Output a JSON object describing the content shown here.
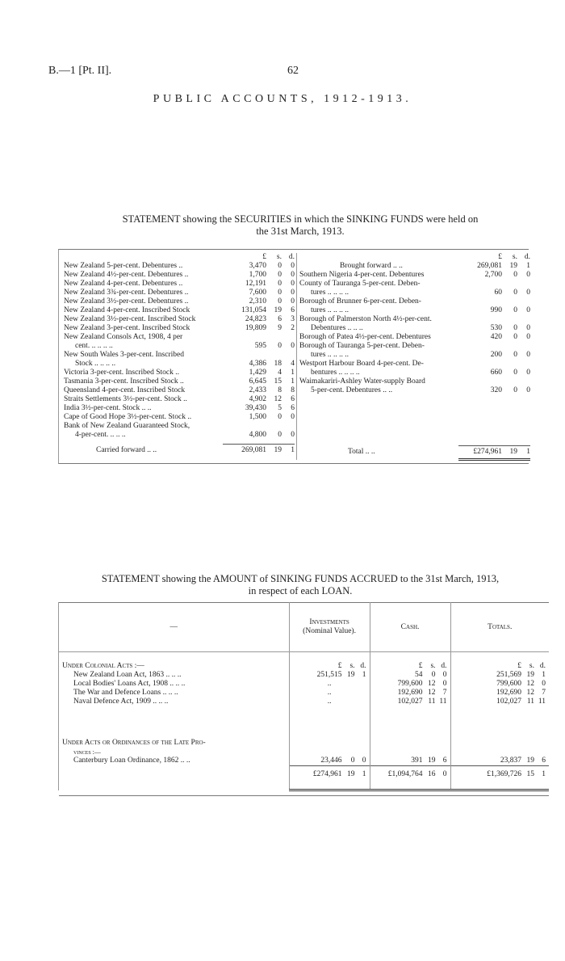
{
  "header": {
    "reference": "B.—1 [Pt. II].",
    "page_number": "62",
    "title": "PUBLIC ACCOUNTS, 1912-1913."
  },
  "statement1": {
    "heading_line1": "STATEMENT showing the SECURITIES in which the SINKING FUNDS were held on",
    "heading_line2": "the 31st March, 1913.",
    "unit_headers": {
      "l": "£",
      "s": "s.",
      "d": "d."
    },
    "left_rows": [
      {
        "name": "New Zealand 5-per-cent. Debentures ..",
        "l": "3,470",
        "s": "0",
        "d": "0"
      },
      {
        "name": "New Zealand 4½-per-cent. Debentures ..",
        "l": "1,700",
        "s": "0",
        "d": "0"
      },
      {
        "name": "New Zealand 4-per-cent. Debentures ..",
        "l": "12,191",
        "s": "0",
        "d": "0"
      },
      {
        "name": "New Zealand 3¾-per-cent. Debentures ..",
        "l": "7,600",
        "s": "0",
        "d": "0"
      },
      {
        "name": "New Zealand 3½-per-cent. Debentures ..",
        "l": "2,310",
        "s": "0",
        "d": "0"
      },
      {
        "name": "New Zealand 4-per-cent. Inscribed Stock",
        "l": "131,054",
        "s": "19",
        "d": "6"
      },
      {
        "name": "New Zealand 3½-per-cent. Inscribed Stock",
        "l": "24,823",
        "s": "6",
        "d": "3"
      },
      {
        "name": "New Zealand 3-per-cent. Inscribed Stock",
        "l": "19,809",
        "s": "9",
        "d": "2"
      },
      {
        "name": "New Zealand Consols Act, 1908, 4 per",
        "l": "",
        "s": "",
        "d": ""
      },
      {
        "name": "cent. .. .. .. ..",
        "l": "595",
        "s": "0",
        "d": "0",
        "indent": true
      },
      {
        "name": "New South Wales 3-per-cent. Inscribed",
        "l": "",
        "s": "",
        "d": ""
      },
      {
        "name": "Stock .. .. .. ..",
        "l": "4,386",
        "s": "18",
        "d": "4",
        "indent": true
      },
      {
        "name": "Victoria 3-per-cent. Inscribed Stock ..",
        "l": "1,429",
        "s": "4",
        "d": "1"
      },
      {
        "name": "Tasmania 3-per-cent. Inscribed Stock ..",
        "l": "6,645",
        "s": "15",
        "d": "1"
      },
      {
        "name": "Queensland 4-per-cent. Inscribed Stock",
        "l": "2,433",
        "s": "8",
        "d": "8"
      },
      {
        "name": "Straits Settlements 3½-per-cent. Stock ..",
        "l": "4,902",
        "s": "12",
        "d": "6"
      },
      {
        "name": "India 3½-per-cent. Stock .. ..",
        "l": "39,430",
        "s": "5",
        "d": "6"
      },
      {
        "name": "Cape of Good Hope 3½-per-cent. Stock ..",
        "l": "1,500",
        "s": "0",
        "d": "0"
      },
      {
        "name": "Bank of New Zealand Guaranteed Stock,",
        "l": "",
        "s": "",
        "d": ""
      },
      {
        "name": "4-per-cent. .. .. ..",
        "l": "4,800",
        "s": "0",
        "d": "0",
        "indent": true
      }
    ],
    "carried_forward": {
      "name": "Carried forward .. ..",
      "l": "269,081",
      "s": "19",
      "d": "1"
    },
    "right_rows": [
      {
        "name": "Brought forward .. ..",
        "l": "269,081",
        "s": "19",
        "d": "1",
        "center": true
      },
      {
        "name": "Southern Nigeria 4-per-cent. Debentures",
        "l": "2,700",
        "s": "0",
        "d": "0"
      },
      {
        "name": "County of Tauranga 5-per-cent. Deben-",
        "l": "",
        "s": "",
        "d": ""
      },
      {
        "name": "tures .. .. .. ..",
        "l": "60",
        "s": "0",
        "d": "0",
        "indent": true
      },
      {
        "name": "Borough of Brunner 6-per-cent. Deben-",
        "l": "",
        "s": "",
        "d": ""
      },
      {
        "name": "tures .. .. .. ..",
        "l": "990",
        "s": "0",
        "d": "0",
        "indent": true
      },
      {
        "name": "Borough of Palmerston North 4½-per-cent.",
        "l": "",
        "s": "",
        "d": ""
      },
      {
        "name": "Debentures .. .. ..",
        "l": "530",
        "s": "0",
        "d": "0",
        "indent": true
      },
      {
        "name": "Borough of Patea 4½-per-cent. Debentures",
        "l": "420",
        "s": "0",
        "d": "0"
      },
      {
        "name": "Borough of Tauranga 5-per-cent. Deben-",
        "l": "",
        "s": "",
        "d": ""
      },
      {
        "name": "tures .. .. .. ..",
        "l": "200",
        "s": "0",
        "d": "0",
        "indent": true
      },
      {
        "name": "Westport Harbour Board 4-per-cent. De-",
        "l": "",
        "s": "",
        "d": ""
      },
      {
        "name": "bentures .. .. .. ..",
        "l": "660",
        "s": "0",
        "d": "0",
        "indent": true
      },
      {
        "name": "Waimakariri-Ashley Water-supply Board",
        "l": "",
        "s": "",
        "d": ""
      },
      {
        "name": "5-per-cent. Debentures .. ..",
        "l": "320",
        "s": "0",
        "d": "0",
        "indent": true
      }
    ],
    "total": {
      "name": "Total .. ..",
      "l": "£274,961",
      "s": "19",
      "d": "1"
    }
  },
  "statement2": {
    "heading_line1": "STATEMENT showing the AMOUNT of SINKING FUNDS ACCRUED to the 31st March, 1913,",
    "heading_line2": "in respect of each LOAN.",
    "col_headers": {
      "first": "—",
      "investments": "Investments",
      "investments_sub": "(Nominal Value).",
      "cash": "Cash.",
      "totals": "Totals."
    },
    "unit_headers": {
      "l": "£",
      "s": "s.",
      "d": "d."
    },
    "sections": [
      {
        "title": "Under Colonial Acts :—",
        "rows": [
          {
            "name": "New Zealand Loan Act, 1863 .. .. ..",
            "inv": [
              "251,515",
              "19",
              "1"
            ],
            "cash": [
              "54",
              "0",
              "0"
            ],
            "tot": [
              "251,569",
              "19",
              "1"
            ]
          },
          {
            "name": "Local Bodies' Loans Act, 1908 .. .. ..",
            "inv": [
              "..",
              "",
              ""
            ],
            "cash": [
              "799,600",
              "12",
              "0"
            ],
            "tot": [
              "799,600",
              "12",
              "0"
            ]
          },
          {
            "name": "The War and Defence Loans .. .. ..",
            "inv": [
              "..",
              "",
              ""
            ],
            "cash": [
              "192,690",
              "12",
              "7"
            ],
            "tot": [
              "192,690",
              "12",
              "7"
            ]
          },
          {
            "name": "Naval Defence Act, 1909 .. .. ..",
            "inv": [
              "..",
              "",
              ""
            ],
            "cash": [
              "102,027",
              "11",
              "11"
            ],
            "tot": [
              "102,027",
              "11",
              "11"
            ]
          }
        ]
      },
      {
        "title": "Under Acts or Ordinances of the Late Pro-",
        "title2": "vinces :—",
        "rows": [
          {
            "name": "Canterbury Loan Ordinance, 1862 .. ..",
            "inv": [
              "23,446",
              "0",
              "0"
            ],
            "cash": [
              "391",
              "19",
              "6"
            ],
            "tot": [
              "23,837",
              "19",
              "6"
            ]
          }
        ]
      }
    ],
    "grand_total": {
      "inv": [
        "£274,961",
        "19",
        "1"
      ],
      "cash": [
        "£1,094,764",
        "16",
        "0"
      ],
      "tot": [
        "£1,369,726",
        "15",
        "1"
      ]
    }
  }
}
